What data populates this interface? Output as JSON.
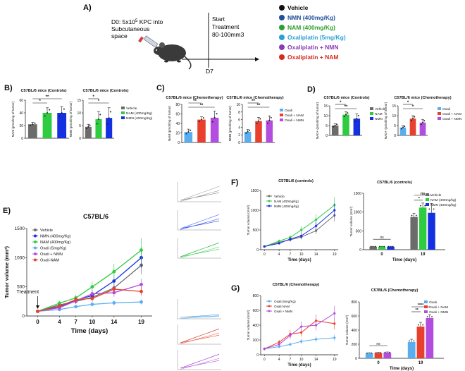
{
  "panel_a": {
    "letter": "A)",
    "design_line1": "D0: 5x10",
    "design_exp": "5",
    "design_line1_tail": " KPC into",
    "design_line2": "Subcutaneous",
    "design_line3": "space",
    "start_line1": "Start",
    "start_line2": "Treatment",
    "start_line3": "80-100mm3",
    "day_label": "D7",
    "legend": [
      {
        "label": "Vehicle",
        "color": "#111111"
      },
      {
        "label": "NMN (400mg/Kg)",
        "color": "#1f4e9c"
      },
      {
        "label": "NAM (400mg/Kg)",
        "color": "#2e9e2e"
      },
      {
        "label": "Oxaliplatin (5mg/Kg)",
        "color": "#2aa1d6"
      },
      {
        "label": "Oxaliplatin + NMN",
        "color": "#8a3bb5"
      },
      {
        "label": "Oxaliplatin + NAM",
        "color": "#d62a1e"
      }
    ]
  },
  "colors": {
    "vehicle": "#6b6b6b",
    "nam": "#2ecc40",
    "nmn": "#1530e0",
    "oxali": "#5aaef0",
    "oxali_nam": "#e8402f",
    "oxali_nmn": "#b24de0"
  },
  "chart_data": [
    {
      "id": "B1",
      "panel_letter": "B)",
      "type": "bar",
      "title": "C57BL/6 mice (Controls)",
      "ylabel": "NAM (pmol/mg of tumor)",
      "ylim": [
        0,
        60
      ],
      "yticks": [
        0,
        20,
        40,
        60
      ],
      "categories": [
        "Vehicle",
        "NAM",
        "NMN"
      ],
      "values": [
        22,
        40,
        40
      ],
      "error": [
        3,
        8,
        10
      ],
      "colors": [
        "#6b6b6b",
        "#2ecc40",
        "#1530e0"
      ],
      "significance": [
        "*",
        "**",
        "*"
      ]
    },
    {
      "id": "B2",
      "type": "bar",
      "title": "C57BL/6 mice (Controls)",
      "ylabel": "NMN (pmol/mg of tumor)",
      "ylim": [
        0,
        15
      ],
      "yticks": [
        0,
        5,
        10,
        15
      ],
      "categories": [
        "Vehicle",
        "NAM",
        "NMN"
      ],
      "values": [
        4.5,
        7.5,
        8
      ],
      "error": [
        1,
        3,
        4
      ],
      "colors": [
        "#6b6b6b",
        "#2ecc40",
        "#1530e0"
      ],
      "significance": [
        "*",
        "*"
      ],
      "legend": [
        "Vehicle",
        "NAM (400mg/Kg)",
        "NMN (400mg/Kg)"
      ]
    },
    {
      "id": "C1",
      "panel_letter": "C)",
      "type": "bar",
      "title": "C57BL/6 mice (Chemotherapy)",
      "ylabel": "NAM (pmol/mg of tumor)",
      "ylim": [
        0,
        80
      ],
      "yticks": [
        0,
        20,
        40,
        60,
        80
      ],
      "categories": [
        "Oxali",
        "Oxali + NAM",
        "Oxali + NMN"
      ],
      "values": [
        22,
        48,
        52
      ],
      "error": [
        6,
        6,
        14
      ],
      "colors": [
        "#5aaef0",
        "#e8402f",
        "#b24de0"
      ],
      "significance": [
        "**",
        "**"
      ]
    },
    {
      "id": "C2",
      "type": "bar",
      "title": "C57BL/6 mice (Chemotherapy)",
      "ylabel": "NMN (pmol/mg of tumor)",
      "ylim": [
        0,
        10
      ],
      "yticks": [
        0,
        2,
        4,
        6,
        8,
        10
      ],
      "categories": [
        "Oxali",
        "Oxali + NAM",
        "Oxali + NMN"
      ],
      "values": [
        2.8,
        5.6,
        5.8
      ],
      "error": [
        0.6,
        1,
        1.2
      ],
      "colors": [
        "#5aaef0",
        "#e8402f",
        "#b24de0"
      ],
      "significance": [
        "**",
        "**"
      ],
      "legend": [
        "Oxali",
        "Oxali + NAM",
        "Oxali + NMN"
      ]
    },
    {
      "id": "D1",
      "panel_letter": "D)",
      "type": "bar",
      "title": "C57BL/6 mice (Controls)",
      "ylabel": "NAD+ (pmol/mg of tumor)",
      "ylim": [
        0,
        15
      ],
      "yticks": [
        0,
        5,
        10,
        15
      ],
      "categories": [
        "Vehicle",
        "NAM",
        "NMN"
      ],
      "values": [
        5,
        10.5,
        8.5
      ],
      "error": [
        1,
        1.5,
        2.5
      ],
      "colors": [
        "#6b6b6b",
        "#2ecc40",
        "#1530e0"
      ],
      "significance": [
        "**",
        "*"
      ],
      "legend": [
        "Vehicle",
        "NAM",
        "NMN"
      ]
    },
    {
      "id": "D2",
      "type": "bar",
      "title": "C57BL/6 mice (Chemotherapy)",
      "ylabel": "NAD+ (pmol/mg of tumor)",
      "ylim": [
        0,
        15
      ],
      "yticks": [
        0,
        5,
        10,
        15
      ],
      "categories": [
        "Oxali",
        "Oxali + NAM",
        "Oxali + NMN"
      ],
      "values": [
        4,
        8.5,
        6.5
      ],
      "error": [
        1,
        1.5,
        1.5
      ],
      "colors": [
        "#5aaef0",
        "#e8402f",
        "#b24de0"
      ],
      "significance": [
        "*",
        "*"
      ],
      "legend": [
        "Oxali",
        "Oxali + NAM",
        "Oxali + NMN"
      ]
    },
    {
      "id": "E",
      "panel_letter": "E)",
      "type": "line",
      "title": "C57BL/6",
      "xlabel": "Time (days)",
      "ylabel": "Tumor volume (mm³)",
      "x": [
        0,
        4,
        7,
        10,
        14,
        19
      ],
      "xlim": [
        -2,
        21
      ],
      "ylim": [
        0,
        1500
      ],
      "yticks": [
        0,
        500,
        1000,
        1500
      ],
      "annotation": "Treatment",
      "series": [
        {
          "name": "Vehicle",
          "color": "#6b6b6b",
          "values": [
            80,
            190,
            250,
            320,
            480,
            870
          ]
        },
        {
          "name": "NMN (400mg/Kg)",
          "color": "#1530e0",
          "values": [
            80,
            160,
            270,
            350,
            600,
            1000
          ]
        },
        {
          "name": "NAM (400mg/Kg)",
          "color": "#2ecc40",
          "values": [
            80,
            220,
            310,
            500,
            760,
            1130
          ]
        },
        {
          "name": "Oxali (5mg/Kg)",
          "color": "#5aaef0",
          "values": [
            80,
            110,
            160,
            200,
            225,
            240
          ]
        },
        {
          "name": "Oxali + NMN",
          "color": "#b24de0",
          "values": [
            80,
            140,
            260,
            380,
            400,
            540
          ]
        },
        {
          "name": "Oxali-NAM",
          "color": "#e8402f",
          "values": [
            80,
            170,
            280,
            300,
            460,
            420
          ]
        }
      ]
    },
    {
      "id": "F1",
      "panel_letter": "F)",
      "type": "line",
      "title": "C57BL/6 (controls)",
      "xlabel": "Time (days)",
      "ylabel": "Tumor volume (mm³)",
      "x": [
        0,
        4,
        7,
        10,
        14,
        19
      ],
      "xlim": [
        -1,
        20
      ],
      "ylim": [
        0,
        1500
      ],
      "yticks": [
        0,
        500,
        1000,
        1500
      ],
      "series": [
        {
          "name": "Vehicle",
          "color": "#6b6b6b",
          "values": [
            80,
            190,
            250,
            320,
            480,
            870
          ]
        },
        {
          "name": "NAM (400mg/kg)",
          "color": "#2ecc40",
          "values": [
            80,
            220,
            310,
            500,
            760,
            1130
          ]
        },
        {
          "name": "NMN (400mg/kg)",
          "color": "#1530e0",
          "values": [
            80,
            160,
            270,
            350,
            600,
            1000
          ]
        }
      ]
    },
    {
      "id": "F2",
      "type": "bar",
      "title": "C57BL/6 (controls)",
      "xlabel": "Time (days)",
      "ylabel": "Tumor volume (mm³)",
      "ylim": [
        0,
        1500
      ],
      "yticks": [
        0,
        500,
        1000,
        1500
      ],
      "groups": [
        "0",
        "19"
      ],
      "series": [
        {
          "name": "Vehicle",
          "color": "#6b6b6b",
          "values": [
            80,
            870
          ],
          "error": [
            10,
            100
          ]
        },
        {
          "name": "NAM (400mg/kg)",
          "color": "#2ecc40",
          "values": [
            80,
            1120
          ],
          "error": [
            10,
            120
          ]
        },
        {
          "name": "NMN (400mg/kg)",
          "color": "#1530e0",
          "values": [
            80,
            980
          ],
          "error": [
            10,
            250
          ]
        }
      ],
      "significance": [
        "ns",
        "*",
        "ns"
      ]
    },
    {
      "id": "G1",
      "panel_letter": "G)",
      "type": "line",
      "title": "C57BL/6 (Chemotherapy)",
      "xlabel": "Time (days)",
      "ylabel": "Tumor volume (mm³)",
      "x": [
        0,
        4,
        7,
        10,
        14,
        19
      ],
      "xlim": [
        -1,
        20
      ],
      "ylim": [
        0,
        800
      ],
      "yticks": [
        0,
        200,
        400,
        600,
        800
      ],
      "series": [
        {
          "name": "Oxali (5mg/Kg)",
          "color": "#5aaef0",
          "values": [
            80,
            110,
            140,
            180,
            210,
            230
          ]
        },
        {
          "name": "Oxali NAM",
          "color": "#e8402f",
          "values": [
            80,
            170,
            280,
            300,
            460,
            420
          ]
        },
        {
          "name": "Oxali + NMN",
          "color": "#b24de0",
          "values": [
            80,
            140,
            260,
            380,
            400,
            560
          ]
        }
      ]
    },
    {
      "id": "G2",
      "type": "bar",
      "title": "C57BL/6 (Chemotherapy)",
      "xlabel": "Time (days)",
      "ylabel": "Tumor volume (mm³)",
      "ylim": [
        0,
        800
      ],
      "yticks": [
        0,
        200,
        400,
        600,
        800
      ],
      "groups": [
        "0",
        "19"
      ],
      "series": [
        {
          "name": "Oxali",
          "color": "#5aaef0",
          "values": [
            70,
            230
          ],
          "error": [
            10,
            40
          ]
        },
        {
          "name": "Oxali + NAM",
          "color": "#e8402f",
          "values": [
            75,
            450
          ],
          "error": [
            10,
            60
          ]
        },
        {
          "name": "Oxali + NMN",
          "color": "#b24de0",
          "values": [
            80,
            570
          ],
          "error": [
            10,
            50
          ]
        }
      ],
      "significance": [
        "ns",
        "**",
        "****"
      ]
    }
  ]
}
